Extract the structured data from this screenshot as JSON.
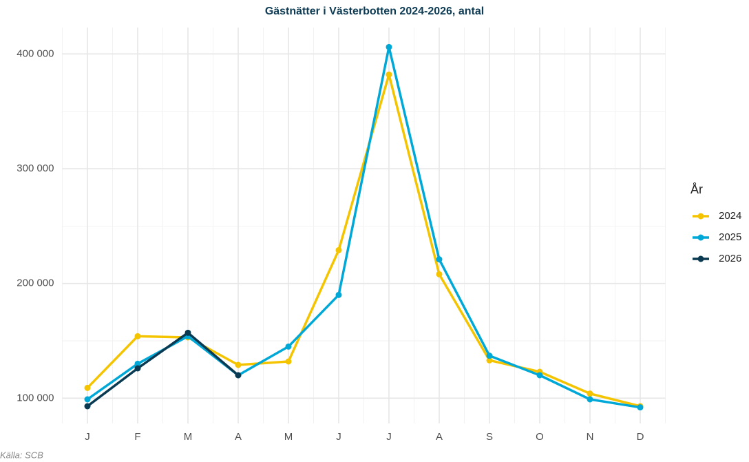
{
  "chart_data": {
    "type": "line",
    "title": "Gästnätter i Västerbotten 2024-2026, antal",
    "caption": "Källa: SCB",
    "legend_title": "År",
    "legend_position": "right",
    "grid": true,
    "categories": [
      "J",
      "F",
      "M",
      "A",
      "M",
      "J",
      "J",
      "A",
      "S",
      "O",
      "N",
      "D"
    ],
    "ylim": [
      78000,
      423000
    ],
    "yticks": [
      {
        "value": 100000,
        "label": "100 000"
      },
      {
        "value": 200000,
        "label": "200 000"
      },
      {
        "value": 300000,
        "label": "300 000"
      },
      {
        "value": 400000,
        "label": "400 000"
      }
    ],
    "series": [
      {
        "name": "2024",
        "color": "#f5c400",
        "values": [
          109000,
          154000,
          153000,
          129000,
          132000,
          229000,
          382000,
          208000,
          133000,
          123000,
          104000,
          93000
        ]
      },
      {
        "name": "2025",
        "color": "#00a8d8",
        "values": [
          99000,
          130000,
          154000,
          120000,
          145000,
          190000,
          406000,
          221000,
          137000,
          120000,
          99000,
          92000
        ]
      },
      {
        "name": "2026",
        "color": "#0a3a52",
        "values": [
          93000,
          126000,
          157000,
          120000,
          null,
          null,
          null,
          null,
          null,
          null,
          null,
          null
        ]
      }
    ]
  }
}
